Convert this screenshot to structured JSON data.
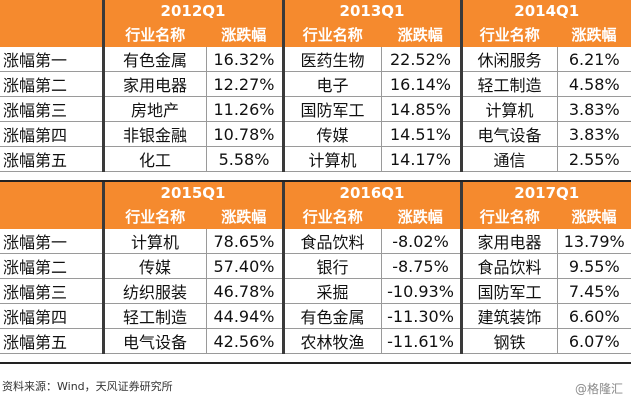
{
  "blocks": [
    {
      "periods": [
        "2012Q1",
        "2013Q1",
        "2014Q1"
      ],
      "col_headers": {
        "industry": "行业名称",
        "change": "涨跌幅"
      },
      "rows": [
        {
          "label": "涨幅第一",
          "cells": [
            [
              "有色金属",
              "16.32%"
            ],
            [
              "医药生物",
              "22.52%"
            ],
            [
              "休闲服务",
              "6.21%"
            ]
          ]
        },
        {
          "label": "涨幅第二",
          "cells": [
            [
              "家用电器",
              "12.27%"
            ],
            [
              "电子",
              "16.14%"
            ],
            [
              "轻工制造",
              "4.58%"
            ]
          ]
        },
        {
          "label": "涨幅第三",
          "cells": [
            [
              "房地产",
              "11.26%"
            ],
            [
              "国防军工",
              "14.85%"
            ],
            [
              "计算机",
              "3.83%"
            ]
          ]
        },
        {
          "label": "涨幅第四",
          "cells": [
            [
              "非银金融",
              "10.78%"
            ],
            [
              "传媒",
              "14.51%"
            ],
            [
              "电气设备",
              "3.83%"
            ]
          ]
        },
        {
          "label": "涨幅第五",
          "cells": [
            [
              "化工",
              "5.58%"
            ],
            [
              "计算机",
              "14.17%"
            ],
            [
              "通信",
              "2.55%"
            ]
          ]
        }
      ]
    },
    {
      "periods": [
        "2015Q1",
        "2016Q1",
        "2017Q1"
      ],
      "col_headers": {
        "industry": "行业名称",
        "change": "涨跌幅"
      },
      "rows": [
        {
          "label": "涨幅第一",
          "cells": [
            [
              "计算机",
              "78.65%"
            ],
            [
              "食品饮料",
              "-8.02%"
            ],
            [
              "家用电器",
              "13.79%"
            ]
          ]
        },
        {
          "label": "涨幅第二",
          "cells": [
            [
              "传媒",
              "57.40%"
            ],
            [
              "银行",
              "-8.75%"
            ],
            [
              "食品饮料",
              "9.55%"
            ]
          ]
        },
        {
          "label": "涨幅第三",
          "cells": [
            [
              "纺织服装",
              "46.78%"
            ],
            [
              "采掘",
              "-10.93%"
            ],
            [
              "国防军工",
              "7.45%"
            ]
          ]
        },
        {
          "label": "涨幅第四",
          "cells": [
            [
              "轻工制造",
              "44.94%"
            ],
            [
              "有色金属",
              "-11.30%"
            ],
            [
              "建筑装饰",
              "6.60%"
            ]
          ]
        },
        {
          "label": "涨幅第五",
          "cells": [
            [
              "电气设备",
              "42.56%"
            ],
            [
              "农林牧渔",
              "-11.61%"
            ],
            [
              "钢铁",
              "6.07%"
            ]
          ]
        }
      ]
    }
  ],
  "footer": {
    "source": "资料来源：Wind，天风证券研究所",
    "watermark": "@格隆汇"
  },
  "colors": {
    "header_bg": "#f58a2e",
    "header_text": "#ffffff"
  }
}
